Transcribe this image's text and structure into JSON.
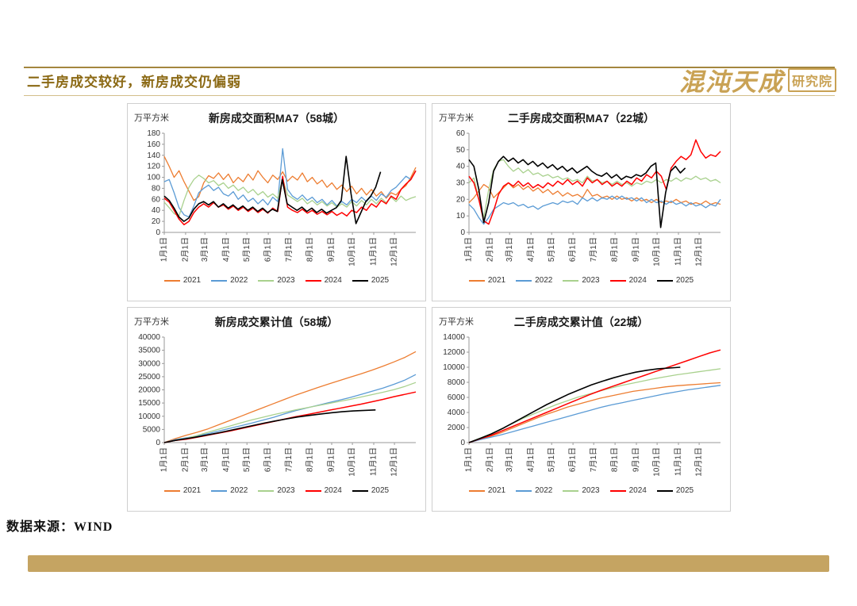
{
  "header": {
    "title": "二手房成交较好，新房成交仍偏弱",
    "logo_main": "混沌天成",
    "logo_sub": "研究院"
  },
  "footer": {
    "source": "数据来源：WIND"
  },
  "chart_data": [
    {
      "type": "line",
      "title": "新房成交面积MA7（58城）",
      "ylabel": "万平方米",
      "ylim": [
        0,
        180
      ],
      "ytick_step": 20,
      "grid": false,
      "legend_position": "bottom",
      "x_ticks": [
        "1月1日",
        "2月1日",
        "3月1日",
        "4月1日",
        "5月1日",
        "6月1日",
        "7月1日",
        "8月1日",
        "9月1日",
        "10月1日",
        "11月1日",
        "12月1日"
      ],
      "series": [
        {
          "name": "2021",
          "color": "#ED7D31",
          "values": [
            138,
            120,
            100,
            112,
            92,
            75,
            58,
            65,
            90,
            103,
            98,
            108,
            96,
            106,
            90,
            100,
            92,
            106,
            95,
            112,
            100,
            90,
            104,
            96,
            110,
            93,
            102,
            95,
            108,
            92,
            100,
            88,
            95,
            82,
            90,
            78,
            86,
            74,
            84,
            70,
            80,
            68,
            78,
            66,
            74,
            62,
            72,
            68,
            78,
            85,
            100,
            118
          ]
        },
        {
          "name": "2022",
          "color": "#5B9BD5",
          "values": [
            92,
            96,
            72,
            45,
            32,
            28,
            48,
            72,
            80,
            86,
            76,
            82,
            70,
            66,
            74,
            60,
            68,
            56,
            62,
            52,
            60,
            50,
            64,
            56,
            152,
            78,
            66,
            60,
            68,
            58,
            64,
            54,
            60,
            50,
            58,
            48,
            56,
            50,
            60,
            54,
            64,
            56,
            66,
            58,
            70,
            64,
            76,
            82,
            92,
            102,
            96,
            112
          ]
        },
        {
          "name": "2023",
          "color": "#A9D18E",
          "values": [
            55,
            45,
            34,
            30,
            58,
            82,
            96,
            104,
            98,
            90,
            94,
            85,
            90,
            80,
            86,
            76,
            82,
            72,
            78,
            68,
            74,
            64,
            70,
            62,
            98,
            68,
            62,
            56,
            62,
            52,
            58,
            50,
            56,
            48,
            54,
            46,
            52,
            46,
            56,
            48,
            58,
            50,
            60,
            52,
            62,
            54,
            64,
            56,
            66,
            58,
            62,
            65
          ]
        },
        {
          "name": "2024",
          "color": "#FF0000",
          "width": 1.5,
          "values": [
            62,
            55,
            40,
            24,
            14,
            20,
            36,
            46,
            52,
            46,
            54,
            46,
            50,
            42,
            48,
            40,
            46,
            38,
            44,
            36,
            42,
            35,
            44,
            38,
            102,
            46,
            40,
            36,
            42,
            35,
            40,
            33,
            38,
            32,
            38,
            31,
            36,
            30,
            40,
            36,
            46,
            40,
            52,
            46,
            58,
            52,
            66,
            60,
            78,
            88,
            96,
            112
          ]
        },
        {
          "name": "2025",
          "color": "#000000",
          "width": 1.6,
          "x_end": 0.86,
          "values": [
            66,
            58,
            44,
            28,
            20,
            26,
            42,
            52,
            56,
            50,
            56,
            46,
            52,
            44,
            50,
            42,
            48,
            40,
            46,
            38,
            44,
            36,
            42,
            38,
            96,
            52,
            46,
            40,
            46,
            38,
            44,
            36,
            42,
            35,
            40,
            45,
            58,
            138,
            70,
            16,
            36,
            56,
            66,
            82,
            110
          ]
        }
      ]
    },
    {
      "type": "line",
      "title": "二手房成交面积MA7（22城）",
      "ylabel": "万平方米",
      "ylim": [
        0,
        60
      ],
      "ytick_step": 10,
      "grid": false,
      "legend_position": "bottom",
      "x_ticks": [
        "1月1日",
        "2月1日",
        "3月1日",
        "4月1日",
        "5月1日",
        "6月1日",
        "7月1日",
        "8月1日",
        "9月1日",
        "10月1日",
        "11月1日",
        "12月1日"
      ],
      "series": [
        {
          "name": "2021",
          "color": "#ED7D31",
          "values": [
            18,
            21,
            25,
            29,
            27,
            21,
            24,
            27,
            30,
            27,
            29,
            26,
            28,
            25,
            27,
            24,
            26,
            23,
            25,
            22,
            24,
            22,
            23,
            21,
            26,
            22,
            23,
            21,
            22,
            20,
            22,
            20,
            21,
            19,
            21,
            19,
            20,
            18,
            20,
            18,
            19,
            18,
            20,
            18,
            19,
            17,
            18,
            17,
            19,
            17,
            18,
            17
          ]
        },
        {
          "name": "2022",
          "color": "#5B9BD5",
          "values": [
            17,
            14,
            9,
            5,
            9,
            14,
            16,
            18,
            17,
            18,
            16,
            17,
            15,
            16,
            14,
            16,
            17,
            18,
            17,
            19,
            18,
            19,
            17,
            21,
            19,
            21,
            19,
            21,
            20,
            22,
            20,
            22,
            20,
            21,
            19,
            21,
            18,
            20,
            18,
            19,
            17,
            19,
            17,
            18,
            16,
            18,
            16,
            17,
            15,
            17,
            16,
            20
          ]
        },
        {
          "name": "2023",
          "color": "#A9D18E",
          "values": [
            30,
            33,
            20,
            9,
            26,
            38,
            43,
            44,
            40,
            37,
            39,
            36,
            38,
            35,
            36,
            34,
            35,
            33,
            34,
            32,
            33,
            31,
            32,
            30,
            34,
            31,
            32,
            30,
            31,
            29,
            31,
            29,
            30,
            28,
            30,
            29,
            31,
            30,
            32,
            30,
            32,
            31,
            33,
            31,
            33,
            32,
            34,
            32,
            33,
            31,
            32,
            30
          ]
        },
        {
          "name": "2024",
          "color": "#FF0000",
          "width": 1.5,
          "values": [
            34,
            30,
            20,
            7,
            5,
            13,
            23,
            28,
            30,
            28,
            31,
            28,
            30,
            27,
            29,
            27,
            30,
            28,
            31,
            29,
            32,
            29,
            31,
            28,
            33,
            30,
            32,
            29,
            31,
            28,
            30,
            28,
            31,
            29,
            33,
            31,
            35,
            33,
            37,
            34,
            26,
            39,
            43,
            46,
            44,
            47,
            56,
            49,
            45,
            47,
            46,
            49
          ]
        },
        {
          "name": "2025",
          "color": "#000000",
          "width": 1.6,
          "x_end": 0.86,
          "values": [
            44,
            40,
            26,
            6,
            18,
            37,
            43,
            46,
            43,
            45,
            42,
            44,
            41,
            43,
            40,
            42,
            39,
            41,
            38,
            40,
            37,
            39,
            36,
            38,
            40,
            37,
            35,
            34,
            36,
            33,
            35,
            32,
            34,
            33,
            35,
            34,
            36,
            40,
            42,
            3,
            24,
            37,
            40,
            36,
            39
          ]
        }
      ]
    },
    {
      "type": "line",
      "title": "新房成交累计值（58城）",
      "ylabel": "万平方米",
      "ylim": [
        0,
        40000
      ],
      "ytick_step": 5000,
      "grid": false,
      "legend_position": "bottom",
      "x_ticks": [
        "1月1日",
        "2月1日",
        "3月1日",
        "4月1日",
        "5月1日",
        "6月1日",
        "7月1日",
        "8月1日",
        "9月1日",
        "10月1日",
        "11月1日",
        "12月1日"
      ],
      "series": [
        {
          "name": "2021",
          "color": "#ED7D31",
          "values": [
            0,
            1500,
            2800,
            3900,
            5200,
            6800,
            8400,
            10000,
            11600,
            13200,
            14800,
            16400,
            18000,
            19400,
            20800,
            22200,
            23500,
            24800,
            26100,
            27500,
            29000,
            30600,
            32300,
            34500
          ]
        },
        {
          "name": "2022",
          "color": "#5B9BD5",
          "values": [
            0,
            1100,
            1800,
            2500,
            3400,
            4400,
            5400,
            6400,
            7400,
            8500,
            9600,
            10900,
            12100,
            13100,
            14100,
            15100,
            16100,
            17100,
            18300,
            19500,
            20700,
            22100,
            23700,
            25800
          ]
        },
        {
          "name": "2023",
          "color": "#A9D18E",
          "values": [
            0,
            900,
            1600,
            2700,
            3900,
            5100,
            6300,
            7500,
            8600,
            9600,
            10600,
            11500,
            12400,
            13200,
            14000,
            14800,
            15600,
            16400,
            17300,
            18200,
            19100,
            20100,
            21300,
            22800
          ]
        },
        {
          "name": "2024",
          "color": "#FF0000",
          "width": 1.5,
          "values": [
            0,
            800,
            1300,
            2000,
            2800,
            3600,
            4400,
            5300,
            6200,
            7100,
            8000,
            8900,
            9800,
            10600,
            11400,
            12200,
            13000,
            13800,
            14600,
            15500,
            16400,
            17400,
            18300,
            19200
          ]
        },
        {
          "name": "2025",
          "color": "#000000",
          "width": 1.6,
          "x_end": 0.84,
          "values": [
            0,
            850,
            1500,
            2200,
            3000,
            3800,
            4700,
            5600,
            6500,
            7400,
            8200,
            9000,
            9700,
            10300,
            10800,
            11300,
            11700,
            12000,
            12200,
            12400
          ]
        }
      ]
    },
    {
      "type": "line",
      "title": "二手房成交累计值（22城）",
      "ylabel": "万平方米",
      "ylim": [
        0,
        14000
      ],
      "ytick_step": 2000,
      "grid": false,
      "legend_position": "bottom",
      "x_ticks": [
        "1月1日",
        "2月1日",
        "3月1日",
        "4月1日",
        "5月1日",
        "6月1日",
        "7月1日",
        "8月1日",
        "9月1日",
        "10月1日",
        "11月1日",
        "12月1日"
      ],
      "series": [
        {
          "name": "2021",
          "color": "#ED7D31",
          "values": [
            0,
            450,
            850,
            1350,
            1950,
            2550,
            3150,
            3700,
            4200,
            4700,
            5100,
            5500,
            5900,
            6200,
            6500,
            6800,
            7000,
            7200,
            7400,
            7550,
            7650,
            7750,
            7850,
            7950
          ]
        },
        {
          "name": "2022",
          "color": "#5B9BD5",
          "values": [
            0,
            380,
            700,
            1050,
            1450,
            1850,
            2250,
            2650,
            3050,
            3450,
            3850,
            4250,
            4650,
            5000,
            5300,
            5600,
            5900,
            6200,
            6500,
            6750,
            7000,
            7200,
            7400,
            7600
          ]
        },
        {
          "name": "2023",
          "color": "#A9D18E",
          "values": [
            0,
            600,
            1150,
            1850,
            2550,
            3250,
            3850,
            4450,
            5050,
            5550,
            6050,
            6450,
            6850,
            7250,
            7600,
            7900,
            8200,
            8500,
            8750,
            9000,
            9200,
            9400,
            9600,
            9800
          ]
        },
        {
          "name": "2024",
          "color": "#FF0000",
          "width": 1.5,
          "values": [
            0,
            500,
            950,
            1550,
            2150,
            2750,
            3350,
            3950,
            4550,
            5150,
            5750,
            6350,
            6900,
            7400,
            7900,
            8400,
            8900,
            9400,
            9900,
            10400,
            10900,
            11400,
            11900,
            12300
          ]
        },
        {
          "name": "2025",
          "color": "#000000",
          "width": 1.6,
          "x_end": 0.84,
          "values": [
            0,
            550,
            1150,
            1850,
            2650,
            3450,
            4250,
            5050,
            5750,
            6450,
            7050,
            7650,
            8150,
            8600,
            9000,
            9350,
            9600,
            9800,
            9900,
            10000
          ]
        }
      ]
    }
  ]
}
